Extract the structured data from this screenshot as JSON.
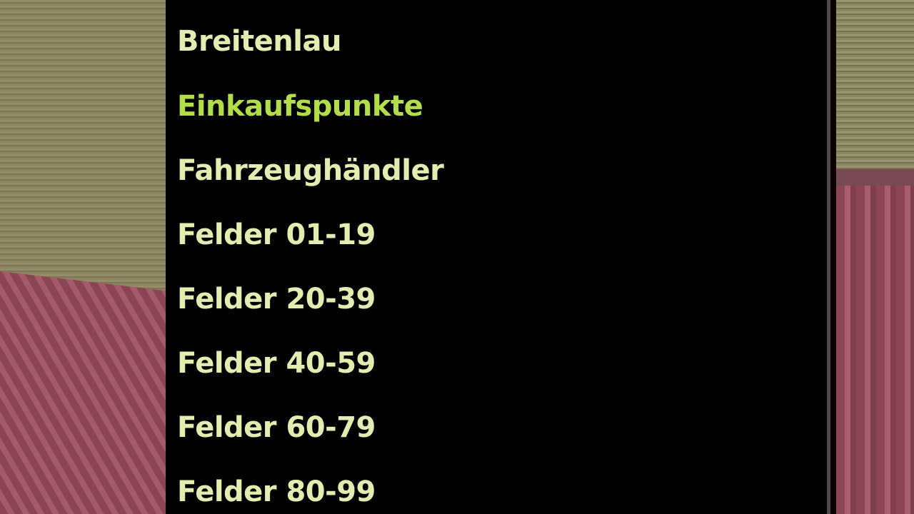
{
  "menu": {
    "items": [
      {
        "label": "Breitenlau",
        "selected": false
      },
      {
        "label": "Einkaufspunkte",
        "selected": true
      },
      {
        "label": "Fahrzeughändler",
        "selected": false
      },
      {
        "label": "Felder 01-19",
        "selected": false
      },
      {
        "label": "Felder 20-39",
        "selected": false
      },
      {
        "label": "Felder 40-59",
        "selected": false
      },
      {
        "label": "Felder 60-79",
        "selected": false
      },
      {
        "label": "Felder 80-99",
        "selected": false
      }
    ]
  },
  "colors": {
    "text": "#e4ecb0",
    "selected": "#b2de4a",
    "panel": "#000000"
  }
}
